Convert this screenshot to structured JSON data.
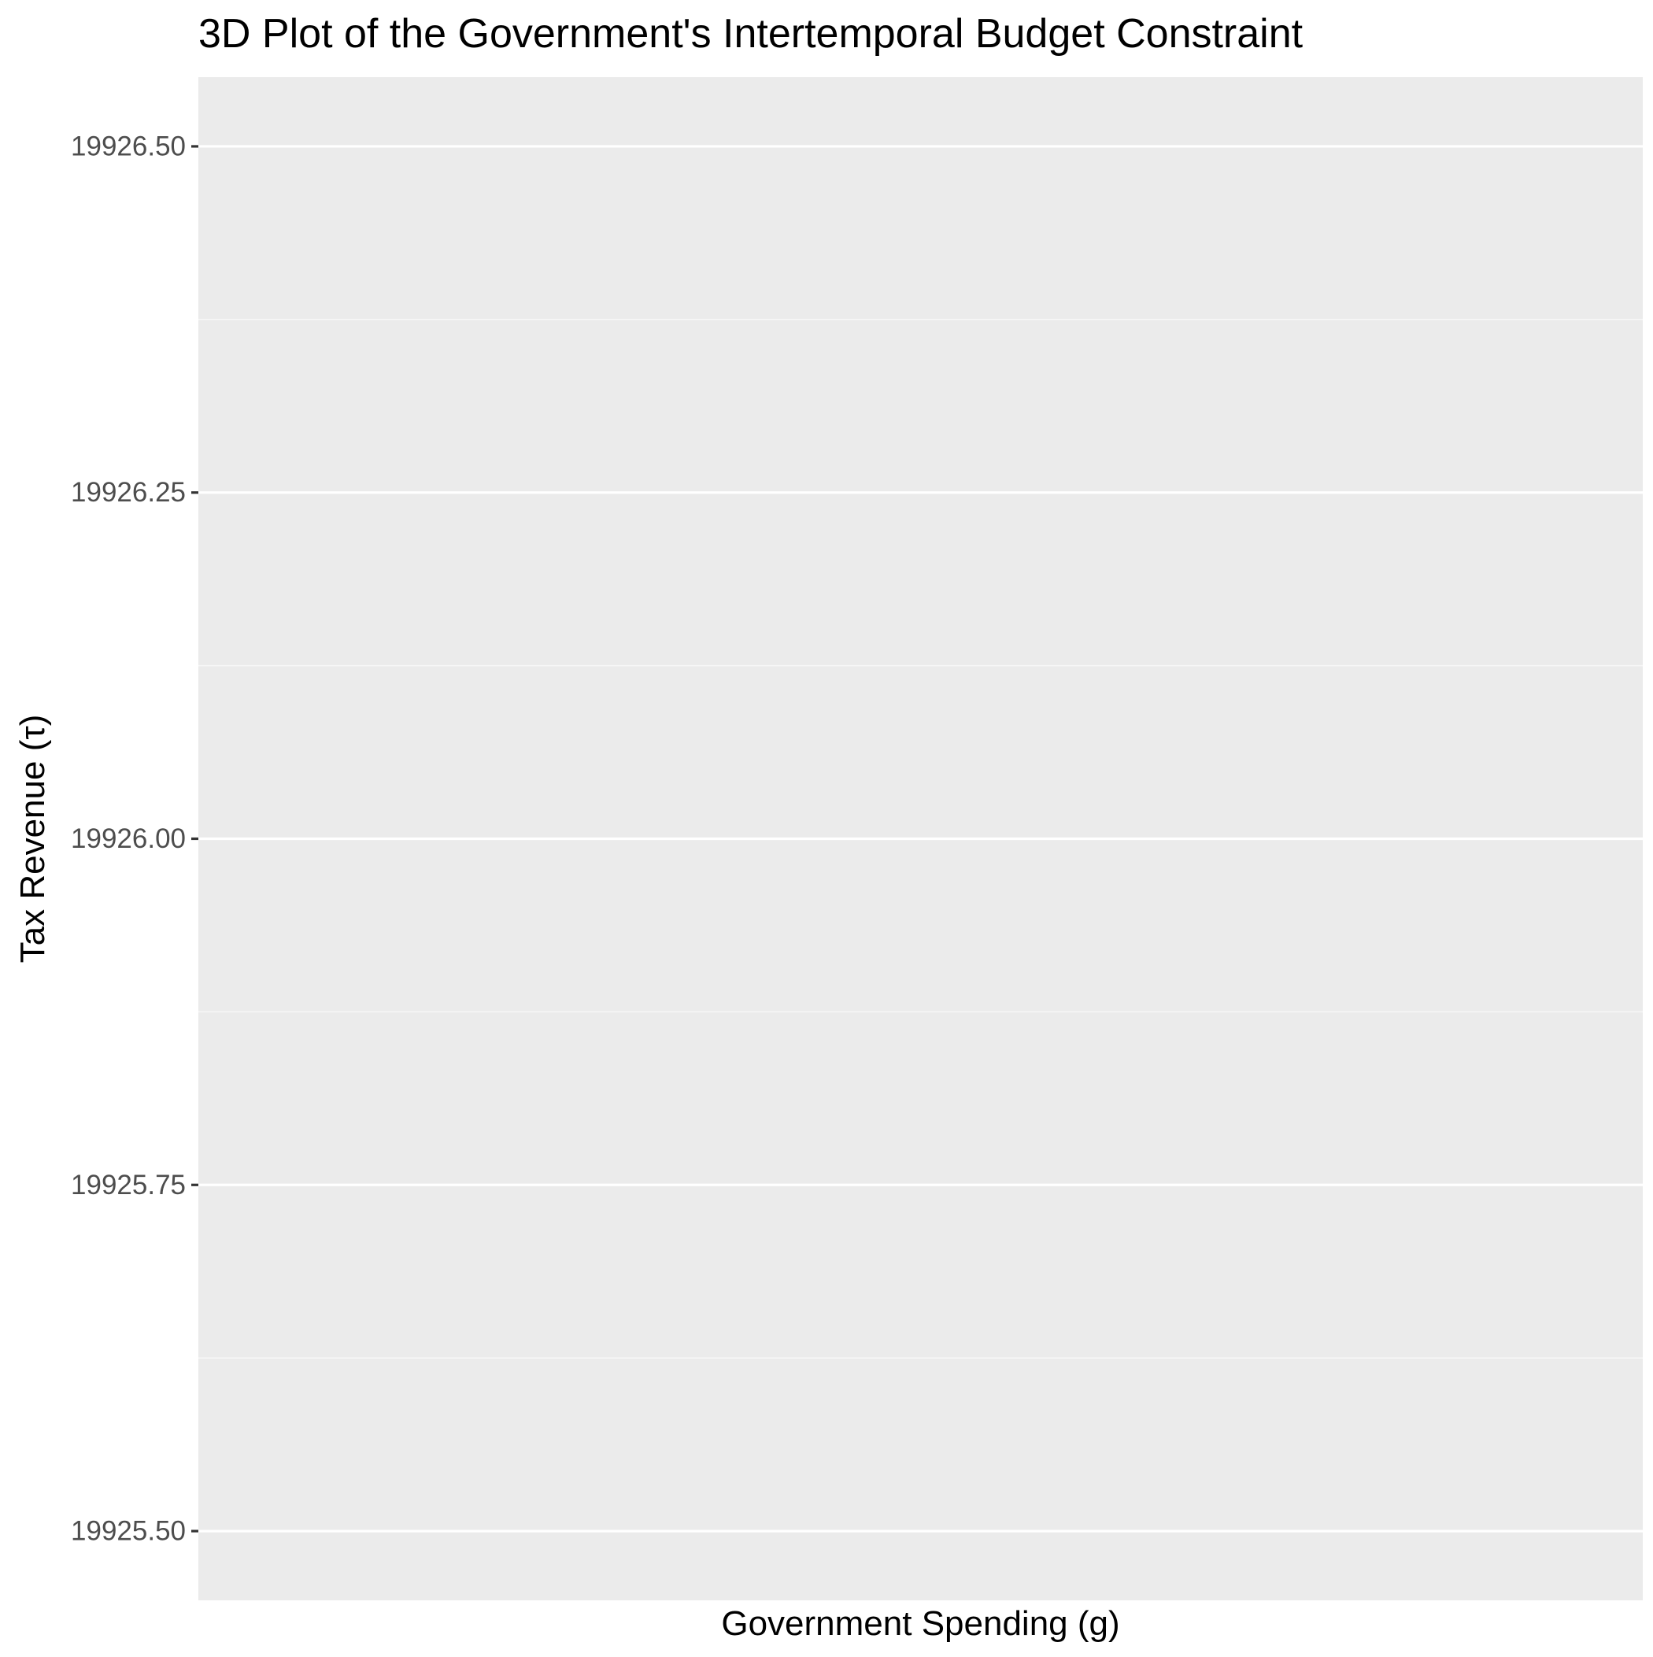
{
  "chart_data": {
    "type": "line",
    "title": "3D Plot of the Government's Intertemporal Budget Constraint",
    "xlabel": "Government Spending (g)",
    "ylabel": "Tax Revenue (τ)",
    "ylim": [
      19925.45,
      19926.55
    ],
    "y_ticks": [
      19925.5,
      19925.75,
      19926.0,
      19926.25,
      19926.5
    ],
    "y_tick_labels": [
      "19925.50",
      "19925.75",
      "19926.00",
      "19926.25",
      "19926.50"
    ],
    "x_ticks": [],
    "series": [],
    "grid": true,
    "legend": "none",
    "colors": {
      "panel_background": "#EBEBEB",
      "grid_major": "#FFFFFF",
      "grid_minor": "#F7F7F7",
      "tick_label": "#4D4D4D",
      "tick_mark": "#333333",
      "title_text": "#000000"
    }
  }
}
